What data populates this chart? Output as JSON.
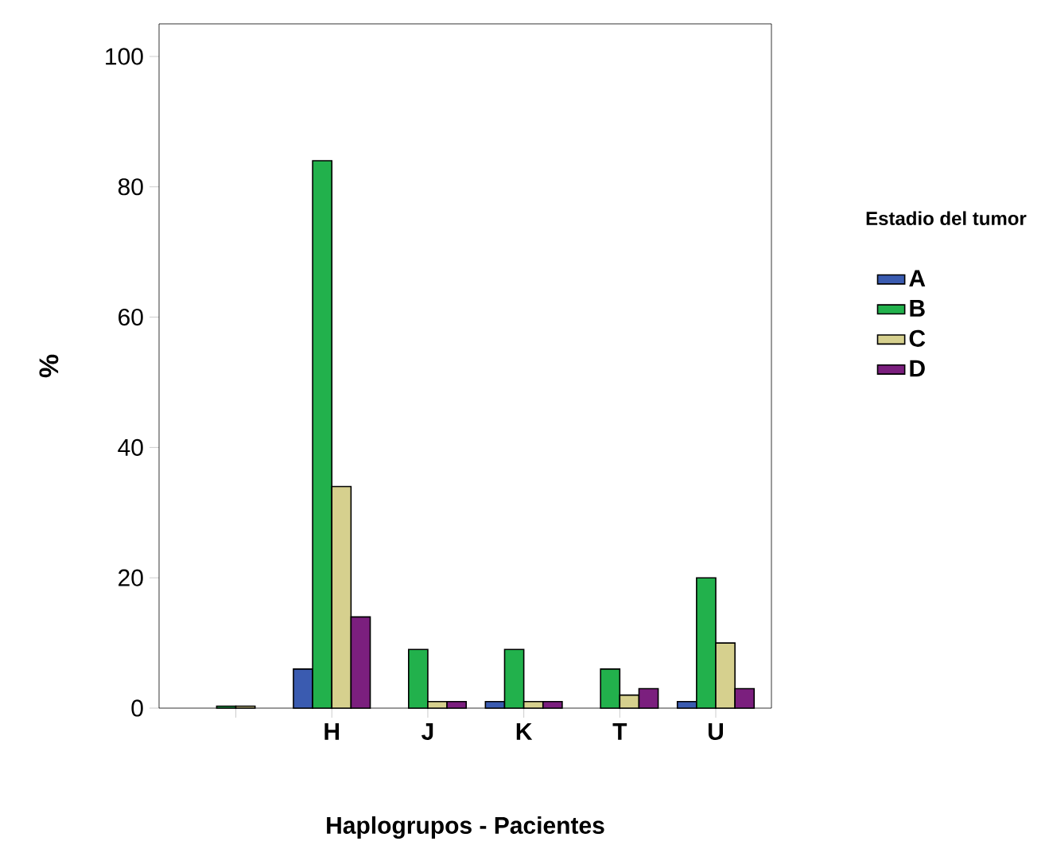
{
  "chart_data": {
    "type": "bar",
    "xlabel": "Haplogrupos - Pacientes",
    "ylabel": "%",
    "legend_title": "Estadio del tumor",
    "categories": [
      null,
      "H",
      "J",
      "K",
      "T",
      "U"
    ],
    "series": [
      {
        "name": "A",
        "color": "#3a5bb0",
        "values": [
          null,
          6,
          null,
          1,
          null,
          1
        ]
      },
      {
        "name": "B",
        "color": "#22b14c",
        "values": [
          0.3,
          84,
          9,
          9,
          6,
          20
        ]
      },
      {
        "name": "C",
        "color": "#d6d08e",
        "values": [
          0.3,
          34,
          1,
          1,
          2,
          10
        ]
      },
      {
        "name": "D",
        "color": "#7b1f7e",
        "values": [
          null,
          14,
          1,
          1,
          3,
          3
        ]
      }
    ],
    "ylim": [
      0,
      105
    ],
    "yticks": [
      0,
      20,
      40,
      60,
      80,
      100
    ],
    "legend": "right"
  }
}
